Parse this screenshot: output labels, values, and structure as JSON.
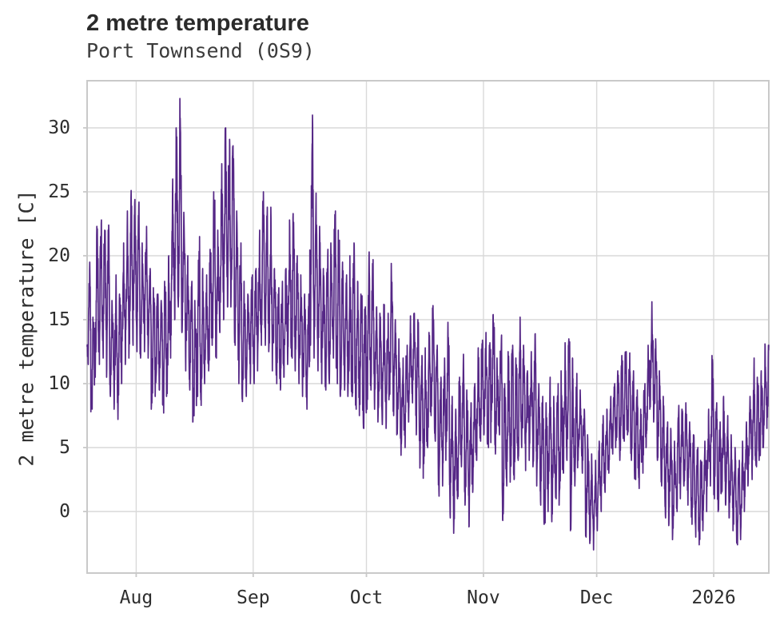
{
  "header": {
    "title": "2 metre temperature",
    "subtitle": "Port Townsend (0S9)"
  },
  "chart_data": {
    "type": "line",
    "title": "2 metre temperature",
    "subtitle": "Port Townsend (0S9)",
    "xlabel": "",
    "ylabel": "2 metre temperature [C]",
    "legend": "none",
    "grid": true,
    "line_color": "#552786",
    "grid_color": "#d9d9d9",
    "spine_color": "#c9c9c9",
    "tick_text_color": "#2e2e2e",
    "background_color": "#ffffff",
    "ylim": [
      -4.8125,
      33.6875
    ],
    "yticks": [
      0,
      5,
      10,
      15,
      20,
      25,
      30
    ],
    "xticks": [
      {
        "label": "Aug",
        "day": 13
      },
      {
        "label": "Sep",
        "day": 44
      },
      {
        "label": "Oct",
        "day": 74
      },
      {
        "label": "Nov",
        "day": 105
      },
      {
        "label": "Dec",
        "day": 135
      },
      {
        "label": "2026",
        "day": 166
      }
    ],
    "x_total_days": 180.6,
    "sampling": "hourly",
    "series_name": "2 metre temperature",
    "daily_min_max": [
      [
        11.5,
        19.5
      ],
      [
        7.8,
        15.2
      ],
      [
        10.5,
        22.3
      ],
      [
        11.5,
        22.8
      ],
      [
        12,
        22
      ],
      [
        10.5,
        22.4
      ],
      [
        9,
        16.5
      ],
      [
        8,
        18.5
      ],
      [
        7.2,
        17
      ],
      [
        10,
        21
      ],
      [
        11.5,
        23.5
      ],
      [
        12,
        25.1
      ],
      [
        13,
        24.4
      ],
      [
        12.5,
        24.2
      ],
      [
        12,
        21
      ],
      [
        12.5,
        22.3
      ],
      [
        12,
        19
      ],
      [
        8,
        17.5
      ],
      [
        9,
        17
      ],
      [
        9.5,
        16.5
      ],
      [
        7.7,
        18
      ],
      [
        9,
        20
      ],
      [
        12,
        26
      ],
      [
        15,
        30
      ],
      [
        16,
        32.3
      ],
      [
        14,
        23.4
      ],
      [
        11,
        20
      ],
      [
        9.5,
        18
      ],
      [
        7,
        16.5
      ],
      [
        9,
        21.5
      ],
      [
        8.3,
        19
      ],
      [
        10,
        18.5
      ],
      [
        11,
        20.5
      ],
      [
        13,
        25
      ],
      [
        12,
        22
      ],
      [
        14,
        27.2
      ],
      [
        15,
        30
      ],
      [
        16,
        29.1
      ],
      [
        16,
        28.6
      ],
      [
        13,
        23.5
      ],
      [
        10,
        21
      ],
      [
        8.6,
        18
      ],
      [
        9,
        17
      ],
      [
        10,
        18.5
      ],
      [
        10,
        19
      ],
      [
        11,
        22
      ],
      [
        13,
        25
      ],
      [
        13,
        23.8
      ],
      [
        12.5,
        23.8
      ],
      [
        11,
        19
      ],
      [
        10,
        17.5
      ],
      [
        9.5,
        18
      ],
      [
        10.5,
        19
      ],
      [
        11.5,
        22.8
      ],
      [
        12,
        23.3
      ],
      [
        11,
        20
      ],
      [
        10,
        18.5
      ],
      [
        9,
        17
      ],
      [
        8,
        17
      ],
      [
        13,
        31
      ],
      [
        12,
        24.9
      ],
      [
        11,
        22.3
      ],
      [
        10,
        19
      ],
      [
        9.5,
        20.5
      ],
      [
        10,
        21
      ],
      [
        12,
        23.5
      ],
      [
        10,
        22
      ],
      [
        9,
        19.5
      ],
      [
        9.5,
        18.5
      ],
      [
        9,
        20
      ],
      [
        9,
        21
      ],
      [
        8,
        18
      ],
      [
        7.5,
        17
      ],
      [
        6.5,
        16
      ],
      [
        8,
        20.3
      ],
      [
        9.5,
        19.7
      ],
      [
        8,
        16
      ],
      [
        7,
        15.5
      ],
      [
        6.8,
        16.2
      ],
      [
        6.5,
        15.5
      ],
      [
        9,
        19.4
      ],
      [
        7.5,
        15
      ],
      [
        6,
        13.5
      ],
      [
        4.4,
        12
      ],
      [
        5,
        13
      ],
      [
        7,
        15.3
      ],
      [
        8.5,
        15.5
      ],
      [
        6,
        15
      ],
      [
        3.4,
        12.2
      ],
      [
        2.6,
        12.8
      ],
      [
        5,
        14
      ],
      [
        7.5,
        16.1
      ],
      [
        5.5,
        13
      ],
      [
        1.2,
        10.5
      ],
      [
        2,
        12
      ],
      [
        4,
        14.8
      ],
      [
        -0.5,
        9
      ],
      [
        -1.7,
        8
      ],
      [
        1,
        10.5
      ],
      [
        3.5,
        12.3
      ],
      [
        0.5,
        9.5
      ],
      [
        -1.2,
        8.5
      ],
      [
        1.5,
        10
      ],
      [
        4,
        12.8
      ],
      [
        5.5,
        13.4
      ],
      [
        6,
        14
      ],
      [
        5,
        13.2
      ],
      [
        7,
        15.4
      ],
      [
        4.5,
        12
      ],
      [
        6,
        13.8
      ],
      [
        -0.7,
        10
      ],
      [
        2,
        12.5
      ],
      [
        2.3,
        13
      ],
      [
        2.5,
        12
      ],
      [
        4,
        15.2
      ],
      [
        5,
        13
      ],
      [
        3.2,
        11
      ],
      [
        4,
        12.5
      ],
      [
        3.5,
        13.9
      ],
      [
        2,
        10
      ],
      [
        0.5,
        9
      ],
      [
        -1,
        8.5
      ],
      [
        0,
        10.5
      ],
      [
        -0.8,
        9
      ],
      [
        1,
        10
      ],
      [
        0.5,
        11
      ],
      [
        3,
        13.2
      ],
      [
        4,
        13.5
      ],
      [
        -1.5,
        12
      ],
      [
        2,
        10.8
      ],
      [
        4,
        9.5
      ],
      [
        3,
        8
      ],
      [
        -2,
        6
      ],
      [
        -2.5,
        4.5
      ],
      [
        -3,
        4
      ],
      [
        -1.5,
        5.5
      ],
      [
        0,
        7.5
      ],
      [
        1.5,
        8
      ],
      [
        3,
        9
      ],
      [
        4.5,
        10
      ],
      [
        5,
        11
      ],
      [
        4,
        12.2
      ],
      [
        5.5,
        12.5
      ],
      [
        6,
        12.4
      ],
      [
        4,
        11
      ],
      [
        2.5,
        9.5
      ],
      [
        1.8,
        8
      ],
      [
        3,
        10
      ],
      [
        5,
        13
      ],
      [
        8,
        16.4
      ],
      [
        7,
        13.5
      ],
      [
        4,
        11
      ],
      [
        2,
        9
      ],
      [
        -0.5,
        7
      ],
      [
        -1.1,
        6.5
      ],
      [
        -2.2,
        5.5
      ],
      [
        0,
        8.3
      ],
      [
        1,
        8
      ],
      [
        2,
        8.5
      ],
      [
        0.5,
        7
      ],
      [
        -1,
        6
      ],
      [
        -2,
        5
      ],
      [
        -2.6,
        4
      ],
      [
        -1.5,
        5.5
      ],
      [
        0,
        8
      ],
      [
        2,
        12.2
      ],
      [
        1,
        8.5
      ],
      [
        0,
        7
      ],
      [
        1.5,
        9
      ],
      [
        0.5,
        7.5
      ],
      [
        -0.5,
        6
      ],
      [
        -1.5,
        5
      ],
      [
        -2.6,
        4
      ],
      [
        -2.2,
        5.5
      ],
      [
        0,
        7
      ],
      [
        2,
        9
      ],
      [
        2.5,
        12
      ],
      [
        3.5,
        10.5
      ],
      [
        4,
        11
      ],
      [
        5,
        13.1
      ],
      [
        6.5,
        13
      ]
    ]
  }
}
